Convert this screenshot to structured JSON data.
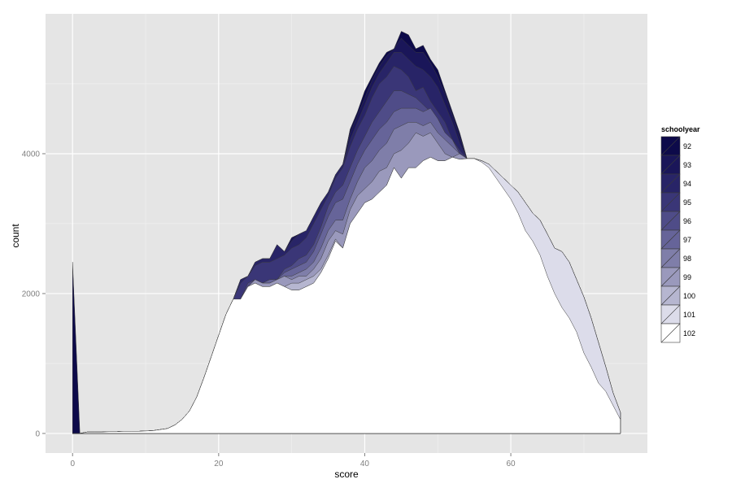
{
  "chart_data": {
    "type": "area",
    "xlabel": "score",
    "ylabel": "count",
    "xlim": [
      -3.7,
      78.7
    ],
    "ylim": [
      -280,
      6000
    ],
    "xticks": [
      0,
      20,
      40,
      60
    ],
    "yticks": [
      0,
      2000,
      4000
    ],
    "grid": true,
    "legend": {
      "title": "schoolyear",
      "position": "right",
      "labels": [
        "92",
        "93",
        "94",
        "95",
        "96",
        "97",
        "98",
        "99",
        "100",
        "101",
        "102"
      ],
      "colors": [
        "#0d0a4a",
        "#1a1659",
        "#282467",
        "#3a3677",
        "#4f4c88",
        "#666499",
        "#7f7ea9",
        "#9a99bc",
        "#b6b6d0",
        "#dcdcea",
        "#ffffff"
      ]
    },
    "x": [
      0,
      1,
      2,
      3,
      4,
      5,
      6,
      7,
      8,
      9,
      10,
      11,
      12,
      13,
      14,
      15,
      16,
      17,
      18,
      19,
      20,
      21,
      22,
      23,
      24,
      25,
      26,
      27,
      28,
      29,
      30,
      31,
      32,
      33,
      34,
      35,
      36,
      37,
      38,
      39,
      40,
      41,
      42,
      43,
      44,
      45,
      46,
      47,
      48,
      49,
      50,
      51,
      52,
      53,
      54,
      55,
      56,
      57,
      58,
      59,
      60,
      61,
      62,
      63,
      64,
      65,
      66,
      67,
      68,
      69,
      70,
      71,
      72,
      73,
      74,
      75
    ],
    "series": [
      {
        "name": "102",
        "values": [
          0,
          0,
          20,
          20,
          20,
          25,
          25,
          30,
          30,
          30,
          35,
          40,
          55,
          70,
          120,
          200,
          320,
          520,
          800,
          1100,
          1400,
          1700,
          1920,
          1920,
          2100,
          2150,
          2100,
          2100,
          2150,
          2100,
          2050,
          2050,
          2100,
          2150,
          2300,
          2500,
          2750,
          2650,
          3000,
          3150,
          3300,
          3350,
          3450,
          3550,
          3800,
          3650,
          3800,
          3800,
          3900,
          3950,
          3900,
          3900,
          3950,
          3920,
          3930,
          3930,
          3880,
          3800,
          3650,
          3500,
          3350,
          3150,
          2900,
          2750,
          2550,
          2250,
          2000,
          1800,
          1650,
          1450,
          1150,
          950,
          720,
          600,
          400,
          200
        ]
      },
      {
        "name": "101",
        "values": [
          0,
          0,
          20,
          20,
          20,
          25,
          25,
          30,
          30,
          30,
          35,
          40,
          55,
          70,
          120,
          200,
          320,
          520,
          800,
          1100,
          1400,
          1700,
          1920,
          1920,
          2100,
          2150,
          2100,
          2100,
          2150,
          2100,
          2050,
          2050,
          2100,
          2150,
          2300,
          2500,
          2750,
          2650,
          3000,
          3150,
          3300,
          3350,
          3450,
          3550,
          3800,
          3650,
          3800,
          3800,
          3900,
          3950,
          3900,
          3900,
          3950,
          3920,
          3930,
          3930,
          3900,
          3850,
          3750,
          3650,
          3550,
          3450,
          3300,
          3150,
          3050,
          2850,
          2650,
          2600,
          2450,
          2200,
          1950,
          1650,
          1300,
          950,
          580,
          300
        ]
      },
      {
        "name": "100",
        "values": [
          0,
          0,
          20,
          20,
          20,
          25,
          25,
          30,
          30,
          30,
          35,
          40,
          55,
          70,
          120,
          200,
          320,
          520,
          800,
          1100,
          1400,
          1700,
          1920,
          1920,
          2100,
          2150,
          2100,
          2100,
          2150,
          2100,
          2150,
          2150,
          2200,
          2250,
          2350,
          2550,
          2780,
          2650,
          3000,
          3150,
          3300,
          3350,
          3450,
          3550,
          3800,
          3650,
          3800,
          3800,
          3900,
          3950,
          3900,
          3900,
          3950,
          3920,
          3930,
          3930,
          3900,
          3850,
          3750,
          3650,
          3550,
          3450,
          3300,
          3150,
          3050,
          2850,
          2650,
          2600,
          2450,
          2200,
          1950,
          1650,
          1300,
          950,
          580,
          300
        ]
      },
      {
        "name": "99",
        "values": [
          0,
          0,
          20,
          20,
          20,
          25,
          25,
          30,
          30,
          30,
          35,
          40,
          55,
          70,
          120,
          200,
          320,
          520,
          800,
          1100,
          1400,
          1700,
          1920,
          1920,
          2100,
          2200,
          2150,
          2150,
          2200,
          2250,
          2200,
          2250,
          2250,
          2350,
          2500,
          2750,
          2900,
          2850,
          3200,
          3400,
          3500,
          3600,
          3750,
          3800,
          4000,
          4050,
          4150,
          4300,
          4250,
          4300,
          4150,
          4000,
          3950,
          4000,
          3930,
          3930,
          3900,
          3850,
          3750,
          3650,
          3550,
          3450,
          3300,
          3150,
          3050,
          2850,
          2650,
          2600,
          2450,
          2200,
          1950,
          1650,
          1300,
          950,
          580,
          300
        ]
      },
      {
        "name": "98",
        "values": [
          0,
          0,
          20,
          20,
          20,
          25,
          25,
          30,
          30,
          30,
          35,
          40,
          55,
          70,
          120,
          200,
          320,
          520,
          800,
          1100,
          1400,
          1700,
          1920,
          1920,
          2100,
          2200,
          2150,
          2150,
          2200,
          2250,
          2250,
          2300,
          2350,
          2450,
          2650,
          2900,
          3050,
          3050,
          3350,
          3600,
          3800,
          3900,
          4050,
          4150,
          4350,
          4400,
          4450,
          4450,
          4400,
          4450,
          4300,
          4200,
          4100,
          4000,
          3930,
          3930,
          3900,
          3850,
          3750,
          3650,
          3550,
          3450,
          3300,
          3150,
          3050,
          2850,
          2650,
          2600,
          2450,
          2200,
          1950,
          1650,
          1300,
          950,
          580,
          300
        ]
      },
      {
        "name": "97",
        "values": [
          0,
          0,
          20,
          20,
          20,
          25,
          25,
          30,
          30,
          30,
          35,
          40,
          55,
          70,
          120,
          200,
          320,
          520,
          800,
          1100,
          1400,
          1700,
          1920,
          1920,
          2100,
          2200,
          2150,
          2200,
          2200,
          2300,
          2350,
          2400,
          2450,
          2600,
          2850,
          3100,
          3300,
          3350,
          3600,
          3850,
          4050,
          4200,
          4350,
          4450,
          4600,
          4650,
          4650,
          4650,
          4600,
          4650,
          4500,
          4300,
          4200,
          4000,
          3930,
          3930,
          3900,
          3850,
          3750,
          3650,
          3550,
          3450,
          3300,
          3150,
          3050,
          2850,
          2650,
          2600,
          2450,
          2200,
          1950,
          1650,
          1300,
          950,
          580,
          300
        ]
      },
      {
        "name": "96",
        "values": [
          0,
          0,
          20,
          20,
          20,
          25,
          25,
          30,
          30,
          30,
          35,
          40,
          55,
          70,
          120,
          200,
          320,
          520,
          800,
          1100,
          1400,
          1700,
          1920,
          1920,
          2150,
          2200,
          2150,
          2200,
          2200,
          2350,
          2400,
          2500,
          2550,
          2700,
          2950,
          3250,
          3450,
          3550,
          3800,
          4050,
          4250,
          4450,
          4600,
          4750,
          4900,
          4900,
          4850,
          4800,
          4700,
          4600,
          4500,
          4300,
          4200,
          4000,
          3930,
          3930,
          3900,
          3850,
          3750,
          3650,
          3550,
          3450,
          3300,
          3150,
          3050,
          2850,
          2650,
          2600,
          2450,
          2200,
          1950,
          1650,
          1300,
          950,
          580,
          300
        ]
      },
      {
        "name": "95",
        "values": [
          0,
          0,
          20,
          20,
          20,
          25,
          25,
          30,
          30,
          30,
          35,
          40,
          55,
          70,
          120,
          200,
          320,
          520,
          800,
          1100,
          1400,
          1700,
          1920,
          2150,
          2250,
          2400,
          2450,
          2450,
          2500,
          2550,
          2650,
          2700,
          2800,
          3000,
          3200,
          3400,
          3650,
          3800,
          4100,
          4350,
          4550,
          4800,
          5000,
          5100,
          5250,
          5200,
          5100,
          4900,
          4950,
          4750,
          4600,
          4450,
          4200,
          4050,
          3930,
          3930,
          3900,
          3850,
          3750,
          3650,
          3550,
          3450,
          3300,
          3150,
          3050,
          2850,
          2650,
          2600,
          2450,
          2200,
          1950,
          1650,
          1300,
          950,
          580,
          300
        ]
      },
      {
        "name": "94",
        "values": [
          0,
          0,
          20,
          20,
          20,
          25,
          25,
          30,
          30,
          30,
          35,
          40,
          55,
          70,
          120,
          200,
          320,
          520,
          800,
          1100,
          1400,
          1700,
          1920,
          2200,
          2250,
          2450,
          2500,
          2500,
          2700,
          2600,
          2750,
          2850,
          2900,
          3100,
          3300,
          3450,
          3700,
          3850,
          4200,
          4450,
          4700,
          4950,
          5150,
          5300,
          5450,
          5450,
          5350,
          5250,
          5200,
          5100,
          4950,
          4700,
          4450,
          4150,
          3930,
          3930,
          3900,
          3850,
          3750,
          3650,
          3550,
          3450,
          3300,
          3150,
          3050,
          2850,
          2650,
          2600,
          2450,
          2200,
          1950,
          1650,
          1300,
          950,
          580,
          300
        ]
      },
      {
        "name": "93",
        "values": [
          0,
          0,
          20,
          20,
          20,
          25,
          25,
          30,
          30,
          30,
          35,
          40,
          55,
          70,
          120,
          200,
          320,
          520,
          800,
          1100,
          1400,
          1700,
          1920,
          2200,
          2250,
          2450,
          2500,
          2500,
          2700,
          2600,
          2800,
          2850,
          2900,
          3100,
          3300,
          3450,
          3700,
          3850,
          4300,
          4550,
          4800,
          5050,
          5250,
          5400,
          5500,
          5650,
          5550,
          5450,
          5450,
          5300,
          5100,
          4850,
          4550,
          4250,
          3930,
          3930,
          3900,
          3850,
          3750,
          3650,
          3550,
          3450,
          3300,
          3150,
          3050,
          2850,
          2650,
          2600,
          2450,
          2200,
          1950,
          1650,
          1300,
          950,
          580,
          300
        ]
      },
      {
        "name": "92",
        "values": [
          2450,
          0,
          20,
          20,
          20,
          25,
          25,
          30,
          30,
          30,
          35,
          40,
          55,
          70,
          120,
          200,
          320,
          520,
          800,
          1100,
          1400,
          1700,
          1920,
          2200,
          2250,
          2450,
          2500,
          2500,
          2700,
          2600,
          2800,
          2850,
          2900,
          3100,
          3300,
          3450,
          3700,
          3850,
          4350,
          4600,
          4900,
          5100,
          5300,
          5450,
          5500,
          5750,
          5700,
          5500,
          5550,
          5350,
          5200,
          4900,
          4600,
          4300,
          3930,
          3930,
          3900,
          3850,
          3750,
          3650,
          3550,
          3450,
          3300,
          3150,
          3050,
          2850,
          2650,
          2600,
          2450,
          2200,
          1950,
          1650,
          1300,
          950,
          580,
          300
        ]
      }
    ]
  }
}
